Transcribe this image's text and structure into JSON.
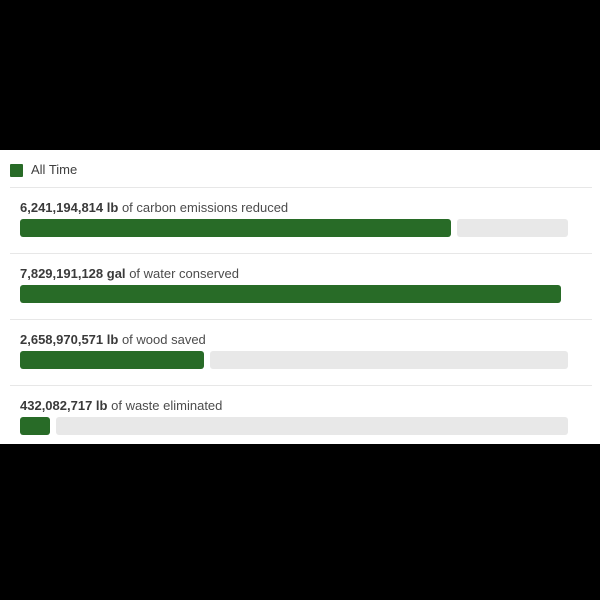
{
  "colors": {
    "background": "#000000",
    "panel": "#ffffff",
    "bar_green": "#286b27",
    "bar_track": "#e8e8e8",
    "divider": "#e7e7e7",
    "text_bold": "#3a3a3a",
    "text_regular": "#4c4c4c"
  },
  "legend": {
    "label": "All Time",
    "swatch_color": "#286b27"
  },
  "metrics": [
    {
      "value": "6,241,194,814",
      "unit": "lb",
      "description": "of carbon emissions reduced",
      "percent": 79.7
    },
    {
      "value": "7,829,191,128",
      "unit": "gal",
      "description": "of water conserved",
      "percent": 100
    },
    {
      "value": "2,658,970,571",
      "unit": "lb",
      "description": "of wood saved",
      "percent": 34.0
    },
    {
      "value": "432,082,717",
      "unit": "lb",
      "description": "of waste eliminated",
      "percent": 5.5
    }
  ],
  "chart_data": {
    "type": "bar",
    "orientation": "horizontal",
    "title": "",
    "legend_entries": [
      "All Time"
    ],
    "legend_position": "top-left",
    "categories": [
      "carbon emissions reduced (lb)",
      "water conserved (gal)",
      "wood saved (lb)",
      "waste eliminated (lb)"
    ],
    "values": [
      6241194814,
      7829191128,
      2658970571,
      432082717
    ],
    "data_labels": [
      "6,241,194,814 lb of carbon emissions reduced",
      "7,829,191,128 gal of water conserved",
      "2,658,970,571 lb of wood saved",
      "432,082,717 lb of waste eliminated"
    ],
    "xlim": [
      0,
      7829191128
    ],
    "grid": false,
    "bar_color": "#286b27",
    "track_color": "#e8e8e8"
  }
}
